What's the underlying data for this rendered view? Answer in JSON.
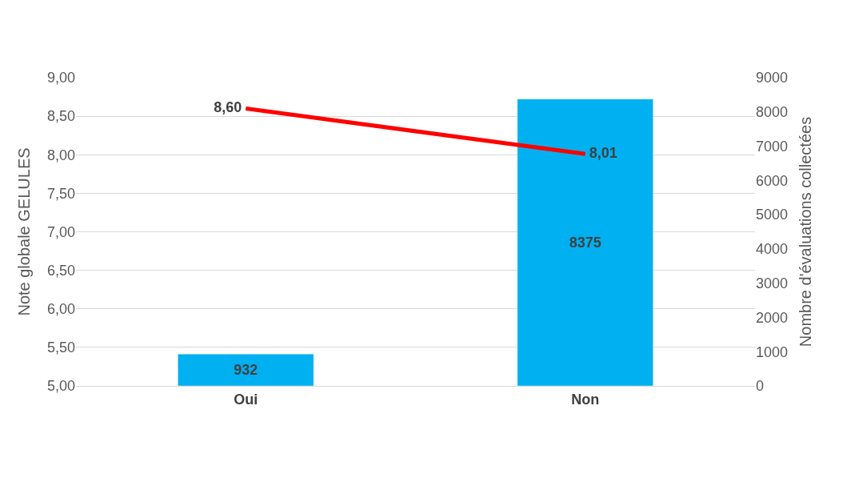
{
  "chart_data": {
    "type": "bar",
    "categories": [
      "Oui",
      "Non"
    ],
    "ylabel": "Note globale GELULES",
    "y2label": "Nombre d'évaluations collectées",
    "ylim": [
      5,
      9
    ],
    "yticks": [
      {
        "value": 5,
        "label": "5,00"
      },
      {
        "value": 5.5,
        "label": "5,50"
      },
      {
        "value": 6,
        "label": "6,00"
      },
      {
        "value": 6.5,
        "label": "6,50"
      },
      {
        "value": 7,
        "label": "7,00"
      },
      {
        "value": 7.5,
        "label": "7,50"
      },
      {
        "value": 8,
        "label": "8,00"
      },
      {
        "value": 8.5,
        "label": "8,50"
      },
      {
        "value": 9,
        "label": "9,00"
      }
    ],
    "y2lim": [
      0,
      9000
    ],
    "y2ticks": [
      0,
      1000,
      2000,
      3000,
      4000,
      5000,
      6000,
      7000,
      8000,
      9000
    ],
    "grid": "y",
    "series": [
      {
        "axis": "y2",
        "color": "#00b0f0",
        "values": [
          932,
          8375
        ],
        "value_labels": [
          "932",
          "8375"
        ]
      },
      {
        "type": "line",
        "axis": "y",
        "color": "#ff0000",
        "values": [
          8.6,
          8.01
        ],
        "value_labels": [
          "8,60",
          "8,01"
        ]
      }
    ]
  }
}
